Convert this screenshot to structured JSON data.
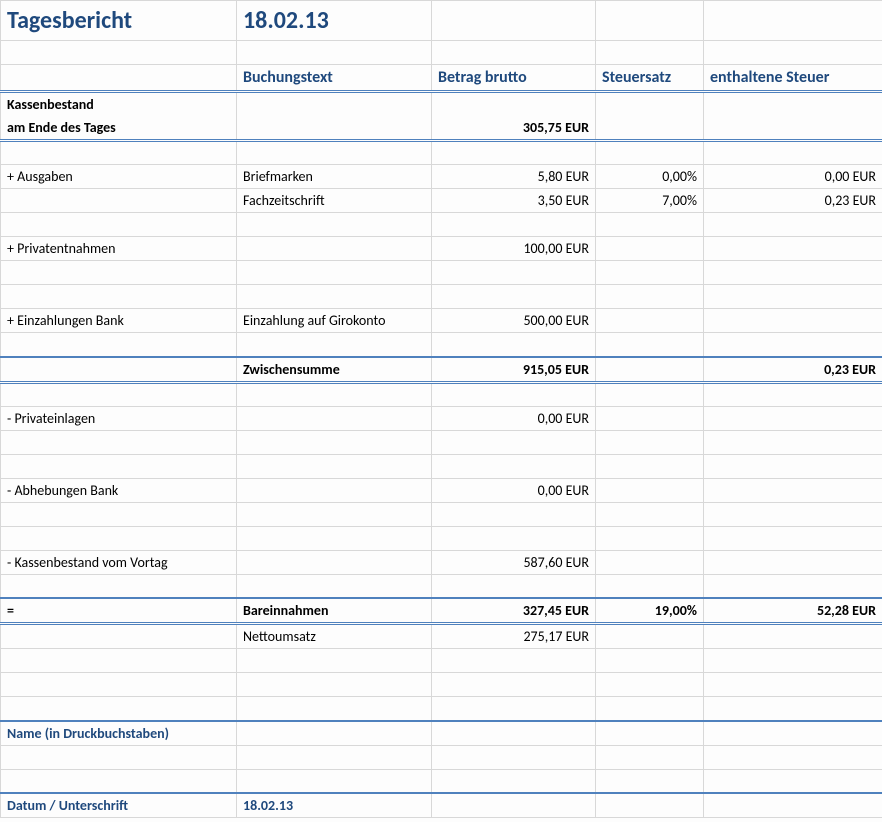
{
  "title": "Tagesbericht",
  "date": "18.02.13",
  "headers": {
    "buchungstext": "Buchungstext",
    "betrag": "Betrag brutto",
    "steuersatz": "Steuersatz",
    "steuer": "enthaltene Steuer"
  },
  "kassenbestand": {
    "label1": "Kassenbestand",
    "label2": "am Ende des Tages",
    "betrag": "305,75 EUR"
  },
  "ausgaben": {
    "label": "+ Ausgaben",
    "row1": {
      "text": "Briefmarken",
      "betrag": "5,80 EUR",
      "satz": "0,00%",
      "steuer": "0,00 EUR"
    },
    "row2": {
      "text": "Fachzeitschrift",
      "betrag": "3,50 EUR",
      "satz": "7,00%",
      "steuer": "0,23 EUR"
    }
  },
  "privatentnahmen": {
    "label": "+ Privatentnahmen",
    "betrag": "100,00 EUR"
  },
  "einzahlungen": {
    "label": "+ Einzahlungen Bank",
    "text": "Einzahlung auf Girokonto",
    "betrag": "500,00 EUR"
  },
  "zwischensumme": {
    "label": "Zwischensumme",
    "betrag": "915,05 EUR",
    "steuer": "0,23 EUR"
  },
  "privateinlagen": {
    "label": "- Privateinlagen",
    "betrag": "0,00 EUR"
  },
  "abhebungen": {
    "label": "- Abhebungen Bank",
    "betrag": "0,00 EUR"
  },
  "vortag": {
    "label": "- Kassenbestand vom Vortag",
    "betrag": "587,60 EUR"
  },
  "bareinnahmen": {
    "eq": "=",
    "label": "Bareinnahmen",
    "betrag": "327,45 EUR",
    "satz": "19,00%",
    "steuer": "52,28 EUR"
  },
  "nettoumsatz": {
    "label": "Nettoumsatz",
    "betrag": "275,17 EUR"
  },
  "name_label": "Name (in Druckbuchstaben)",
  "datum_label": "Datum / Unterschrift",
  "datum_value": "18.02.13"
}
